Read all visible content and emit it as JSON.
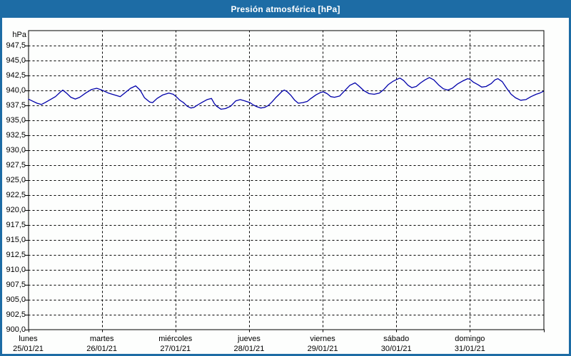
{
  "window": {
    "title": "Presión atmosférica [hPa]"
  },
  "colors": {
    "frame": "#1d6ca5",
    "titlebar": "#1d6ca5",
    "title_text": "#ffffff",
    "background": "#fdfefd",
    "grid": "#000000",
    "axis": "#000000",
    "line": "#0000aa",
    "label_text": "#000000"
  },
  "chart_data": {
    "type": "line",
    "title": "Presión atmosférica [hPa]",
    "ylabel": "hPa",
    "xlabel": "",
    "ylim": [
      900,
      950
    ],
    "ytick_step": 2.5,
    "grid": "dashed horizontal at each 2.5 hPa tick, dashed vertical at each day boundary",
    "legend": "none",
    "decimal_separator": ",",
    "y_ticks": [
      {
        "value": 947.5,
        "label": "947,5"
      },
      {
        "value": 945.0,
        "label": "945,0"
      },
      {
        "value": 942.5,
        "label": "942,5"
      },
      {
        "value": 940.0,
        "label": "940,0"
      },
      {
        "value": 937.5,
        "label": "937,5"
      },
      {
        "value": 935.0,
        "label": "935,0"
      },
      {
        "value": 932.5,
        "label": "932,5"
      },
      {
        "value": 930.0,
        "label": "930,0"
      },
      {
        "value": 927.5,
        "label": "927,5"
      },
      {
        "value": 925.0,
        "label": "925,0"
      },
      {
        "value": 922.5,
        "label": "922,5"
      },
      {
        "value": 920.0,
        "label": "920,0"
      },
      {
        "value": 917.5,
        "label": "917,5"
      },
      {
        "value": 915.0,
        "label": "915,0"
      },
      {
        "value": 912.5,
        "label": "912,5"
      },
      {
        "value": 910.0,
        "label": "910,0"
      },
      {
        "value": 907.5,
        "label": "907,5"
      },
      {
        "value": 905.0,
        "label": "905,0"
      },
      {
        "value": 902.5,
        "label": "902,5"
      },
      {
        "value": 900.0,
        "label": "900,0"
      }
    ],
    "x_axis": {
      "unit": "day",
      "days": [
        {
          "name": "lunes",
          "date": "25/01/21"
        },
        {
          "name": "martes",
          "date": "26/01/21"
        },
        {
          "name": "miércoles",
          "date": "27/01/21"
        },
        {
          "name": "jueves",
          "date": "28/01/21"
        },
        {
          "name": "viernes",
          "date": "29/01/21"
        },
        {
          "name": "sábado",
          "date": "30/01/21"
        },
        {
          "name": "domingo",
          "date": "31/01/21"
        }
      ]
    },
    "series": [
      {
        "name": "presion_atmosferica_hpa",
        "color": "#0000aa",
        "x_unit": "days_from_25_01_21",
        "points": [
          [
            0.0,
            938.5
          ],
          [
            0.05,
            938.2
          ],
          [
            0.12,
            937.8
          ],
          [
            0.18,
            937.6
          ],
          [
            0.23,
            937.9
          ],
          [
            0.3,
            938.4
          ],
          [
            0.37,
            938.9
          ],
          [
            0.44,
            939.7
          ],
          [
            0.47,
            940.0
          ],
          [
            0.52,
            939.5
          ],
          [
            0.58,
            938.8
          ],
          [
            0.64,
            938.5
          ],
          [
            0.7,
            938.8
          ],
          [
            0.78,
            939.5
          ],
          [
            0.86,
            940.1
          ],
          [
            0.93,
            940.3
          ],
          [
            0.98,
            940.1
          ],
          [
            1.0,
            940.0
          ],
          [
            1.09,
            939.5
          ],
          [
            1.17,
            939.2
          ],
          [
            1.25,
            938.9
          ],
          [
            1.31,
            939.5
          ],
          [
            1.39,
            940.3
          ],
          [
            1.46,
            940.7
          ],
          [
            1.52,
            940.0
          ],
          [
            1.58,
            938.7
          ],
          [
            1.65,
            938.0
          ],
          [
            1.69,
            937.9
          ],
          [
            1.75,
            938.6
          ],
          [
            1.83,
            939.2
          ],
          [
            1.91,
            939.5
          ],
          [
            1.97,
            939.3
          ],
          [
            2.01,
            938.9
          ],
          [
            2.06,
            938.3
          ],
          [
            2.11,
            937.9
          ],
          [
            2.16,
            937.3
          ],
          [
            2.21,
            937.0
          ],
          [
            2.25,
            937.1
          ],
          [
            2.3,
            937.5
          ],
          [
            2.37,
            938.0
          ],
          [
            2.43,
            938.4
          ],
          [
            2.49,
            938.6
          ],
          [
            2.53,
            937.7
          ],
          [
            2.56,
            937.3
          ],
          [
            2.62,
            936.8
          ],
          [
            2.68,
            936.9
          ],
          [
            2.75,
            937.3
          ],
          [
            2.82,
            938.2
          ],
          [
            2.88,
            938.4
          ],
          [
            2.94,
            938.2
          ],
          [
            3.01,
            937.9
          ],
          [
            3.06,
            937.5
          ],
          [
            3.11,
            937.2
          ],
          [
            3.16,
            937.0
          ],
          [
            3.21,
            937.1
          ],
          [
            3.26,
            937.4
          ],
          [
            3.31,
            938.0
          ],
          [
            3.36,
            938.7
          ],
          [
            3.41,
            939.3
          ],
          [
            3.45,
            939.8
          ],
          [
            3.48,
            940.0
          ],
          [
            3.52,
            939.7
          ],
          [
            3.57,
            939.1
          ],
          [
            3.62,
            938.3
          ],
          [
            3.67,
            937.8
          ],
          [
            3.73,
            937.9
          ],
          [
            3.79,
            938.1
          ],
          [
            3.84,
            938.6
          ],
          [
            3.91,
            939.2
          ],
          [
            3.97,
            939.6
          ],
          [
            4.01,
            939.7
          ],
          [
            4.06,
            939.4
          ],
          [
            4.11,
            938.9
          ],
          [
            4.16,
            938.8
          ],
          [
            4.23,
            939.0
          ],
          [
            4.3,
            939.9
          ],
          [
            4.37,
            940.8
          ],
          [
            4.44,
            941.2
          ],
          [
            4.49,
            940.7
          ],
          [
            4.56,
            939.9
          ],
          [
            4.63,
            939.4
          ],
          [
            4.7,
            939.3
          ],
          [
            4.77,
            939.5
          ],
          [
            4.83,
            940.1
          ],
          [
            4.89,
            940.9
          ],
          [
            4.96,
            941.5
          ],
          [
            5.01,
            941.8
          ],
          [
            5.05,
            942.0
          ],
          [
            5.1,
            941.6
          ],
          [
            5.16,
            940.8
          ],
          [
            5.21,
            940.4
          ],
          [
            5.27,
            940.6
          ],
          [
            5.33,
            941.2
          ],
          [
            5.39,
            941.7
          ],
          [
            5.45,
            942.1
          ],
          [
            5.51,
            941.7
          ],
          [
            5.58,
            940.8
          ],
          [
            5.64,
            940.2
          ],
          [
            5.7,
            940.0
          ],
          [
            5.76,
            940.3
          ],
          [
            5.83,
            941.0
          ],
          [
            5.9,
            941.5
          ],
          [
            5.97,
            941.9
          ],
          [
            6.0,
            941.8
          ],
          [
            6.05,
            941.3
          ],
          [
            6.11,
            940.9
          ],
          [
            6.16,
            940.5
          ],
          [
            6.22,
            940.6
          ],
          [
            6.29,
            941.1
          ],
          [
            6.34,
            941.7
          ],
          [
            6.38,
            941.9
          ],
          [
            6.44,
            941.4
          ],
          [
            6.5,
            940.3
          ],
          [
            6.56,
            939.3
          ],
          [
            6.62,
            938.7
          ],
          [
            6.69,
            938.3
          ],
          [
            6.76,
            938.4
          ],
          [
            6.83,
            938.9
          ],
          [
            6.9,
            939.3
          ],
          [
            6.95,
            939.5
          ],
          [
            7.0,
            939.8
          ]
        ]
      }
    ]
  }
}
